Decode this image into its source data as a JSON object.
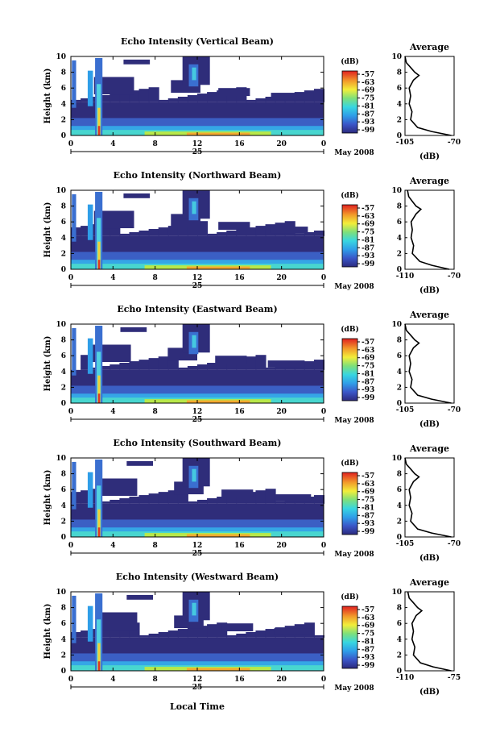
{
  "figure": {
    "xlabel": "Local Time",
    "day_label": "25",
    "month_label": "May 2008",
    "units_label": "(dB)",
    "profile_title": "Average",
    "profile_xlabel": "(dB)"
  },
  "chart_data": [
    {
      "type": "heatmap",
      "title": "Echo Intensity (Vertical Beam)",
      "ylabel": "Height (km)",
      "xlim": [
        0,
        24
      ],
      "ylim": [
        0,
        10
      ],
      "xticks": [
        "0",
        "4",
        "8",
        "12",
        "16",
        "20",
        "0"
      ],
      "yticks": [
        "0",
        "2",
        "4",
        "6",
        "8",
        "10"
      ],
      "colorbar": {
        "ticks": [
          "-57",
          "-63",
          "-69",
          "-75",
          "-81",
          "-87",
          "-93",
          "-99"
        ],
        "range": [
          -99,
          -57
        ]
      },
      "profile": {
        "xlim": [
          -105,
          -70
        ],
        "xticks": [
          "-105",
          "-70"
        ],
        "heights": [
          0,
          0.5,
          1,
          2,
          3,
          4,
          5,
          6,
          7,
          7.6,
          8,
          8.6,
          9.2,
          10
        ],
        "values": [
          -72,
          -86,
          -96,
          -101,
          -100,
          -102,
          -101,
          -102,
          -99,
          -95,
          -98,
          -101,
          -104,
          -105
        ]
      }
    },
    {
      "type": "heatmap",
      "title": "Echo Intensity (Northward Beam)",
      "ylabel": "Height (km)",
      "xlim": [
        0,
        24
      ],
      "ylim": [
        0,
        10
      ],
      "xticks": [
        "0",
        "4",
        "8",
        "12",
        "16",
        "20",
        "0"
      ],
      "yticks": [
        "0",
        "2",
        "4",
        "6",
        "8",
        "10"
      ],
      "colorbar": {
        "ticks": [
          "-57",
          "-63",
          "-69",
          "-75",
          "-81",
          "-87",
          "-93",
          "-99"
        ],
        "range": [
          -99,
          -57
        ]
      },
      "profile": {
        "xlim": [
          -110,
          -70
        ],
        "xticks": [
          "-110",
          "-70"
        ],
        "heights": [
          0,
          0.5,
          1,
          2,
          3,
          4,
          5,
          6,
          7,
          7.6,
          8,
          8.6,
          9.2,
          10
        ],
        "values": [
          -74,
          -88,
          -98,
          -104,
          -103,
          -105,
          -104,
          -105,
          -101,
          -97,
          -101,
          -104,
          -107,
          -108
        ]
      }
    },
    {
      "type": "heatmap",
      "title": "Echo Intensity (Eastward Beam)",
      "ylabel": "Height (km)",
      "xlim": [
        0,
        24
      ],
      "ylim": [
        0,
        10
      ],
      "xticks": [
        "0",
        "4",
        "8",
        "12",
        "16",
        "20",
        "0"
      ],
      "yticks": [
        "0",
        "2",
        "4",
        "6",
        "8",
        "10"
      ],
      "colorbar": {
        "ticks": [
          "-57",
          "-63",
          "-69",
          "-75",
          "-81",
          "-87",
          "-93",
          "-99"
        ],
        "range": [
          -99,
          -57
        ]
      },
      "profile": {
        "xlim": [
          -105,
          -70
        ],
        "xticks": [
          "-105",
          "-70"
        ],
        "heights": [
          0,
          0.5,
          1,
          2,
          3,
          4,
          5,
          6,
          7,
          7.6,
          8,
          8.6,
          9.2,
          10
        ],
        "values": [
          -72,
          -86,
          -96,
          -101,
          -100,
          -102,
          -101,
          -102,
          -99,
          -95,
          -98,
          -101,
          -104,
          -105
        ]
      }
    },
    {
      "type": "heatmap",
      "title": "Echo Intensity (Southward Beam)",
      "ylabel": "Height (km)",
      "xlim": [
        0,
        24
      ],
      "ylim": [
        0,
        10
      ],
      "xticks": [
        "0",
        "4",
        "8",
        "12",
        "16",
        "20",
        "0"
      ],
      "yticks": [
        "0",
        "2",
        "4",
        "6",
        "8",
        "10"
      ],
      "colorbar": {
        "ticks": [
          "-57",
          "-63",
          "-69",
          "-75",
          "-81",
          "-87",
          "-93",
          "-99"
        ],
        "range": [
          -99,
          -57
        ]
      },
      "profile": {
        "xlim": [
          -105,
          -70
        ],
        "xticks": [
          "-105",
          "-70"
        ],
        "heights": [
          0,
          0.5,
          1,
          2,
          3,
          4,
          5,
          6,
          7,
          7.6,
          8,
          8.6,
          9.2,
          10
        ],
        "values": [
          -72,
          -86,
          -96,
          -101,
          -100,
          -102,
          -101,
          -102,
          -99,
          -95,
          -98,
          -101,
          -104,
          -105
        ]
      }
    },
    {
      "type": "heatmap",
      "title": "Echo Intensity (Westward Beam)",
      "ylabel": "Height (km)",
      "xlim": [
        0,
        24
      ],
      "ylim": [
        0,
        10
      ],
      "xticks": [
        "0",
        "4",
        "8",
        "12",
        "16",
        "20",
        "0"
      ],
      "yticks": [
        "0",
        "2",
        "4",
        "6",
        "8",
        "10"
      ],
      "colorbar": {
        "ticks": [
          "-57",
          "-63",
          "-69",
          "-75",
          "-81",
          "-87",
          "-93",
          "-99"
        ],
        "range": [
          -99,
          -57
        ]
      },
      "profile": {
        "xlim": [
          -110,
          -75
        ],
        "xticks": [
          "-110",
          "-75"
        ],
        "heights": [
          0,
          0.5,
          1,
          2,
          3,
          4,
          5,
          6,
          7,
          7.6,
          8,
          8.6,
          9.2,
          10
        ],
        "values": [
          -77,
          -90,
          -99,
          -104,
          -103,
          -105,
          -104,
          -105,
          -102,
          -98,
          -101,
          -104,
          -107,
          -108
        ]
      }
    }
  ]
}
